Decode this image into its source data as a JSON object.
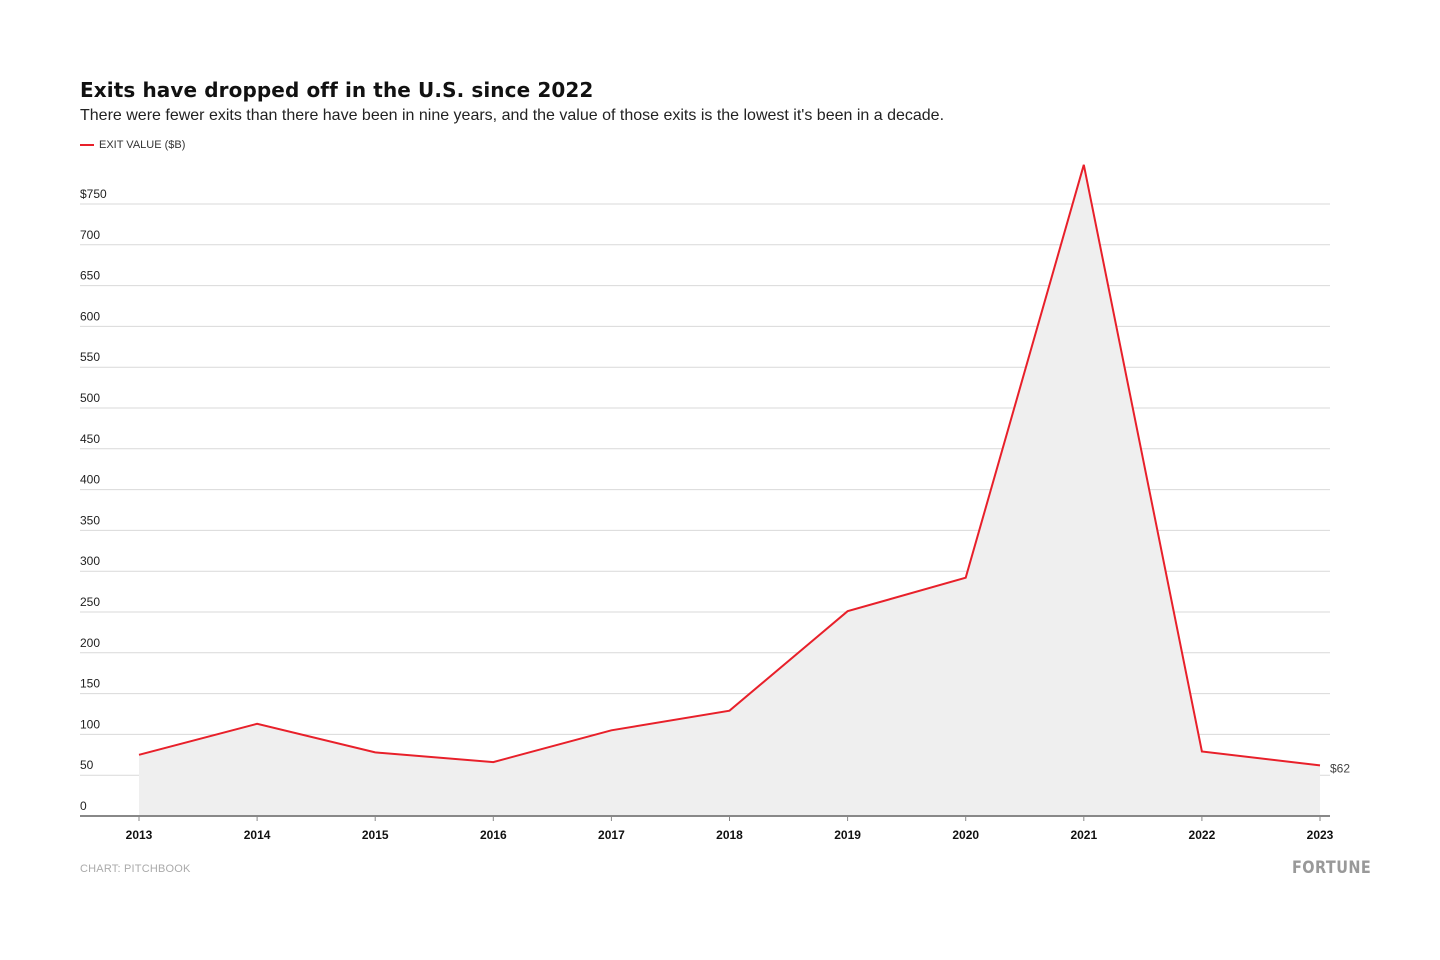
{
  "header": {
    "title": "Exits have dropped off in the U.S. since 2022",
    "subtitle": "There were fewer exits than there have been in nine years, and the value of those exits is the lowest it's been in a decade."
  },
  "footer": {
    "source": "CHART: PITCHBOOK",
    "brand": "FORTUNE"
  },
  "chart_data": {
    "type": "area",
    "title": "Exits have dropped off in the U.S. since 2022",
    "subtitle": "There were fewer exits than there have been in nine years, and the value of those exits is the lowest it's been in a decade.",
    "xlabel": "",
    "ylabel": "",
    "legend": {
      "position": "top-left",
      "entries": [
        {
          "name": "EXIT VALUE ($B)",
          "color": "#e8202a"
        }
      ]
    },
    "categories": [
      "2013",
      "2014",
      "2015",
      "2016",
      "2017",
      "2018",
      "2019",
      "2020",
      "2021",
      "2022",
      "2023"
    ],
    "series": [
      {
        "name": "EXIT VALUE ($B)",
        "color": "#e8202a",
        "fill": "#efefef",
        "values": [
          75,
          113,
          78,
          66,
          105,
          129,
          251,
          292,
          798,
          79,
          62
        ]
      }
    ],
    "ylim": [
      0,
      750
    ],
    "yticks": [
      0,
      50,
      100,
      150,
      200,
      250,
      300,
      350,
      400,
      450,
      500,
      550,
      600,
      650,
      700,
      750
    ],
    "ytick_labels": [
      "0",
      "50",
      "100",
      "150",
      "200",
      "250",
      "300",
      "350",
      "400",
      "450",
      "500",
      "550",
      "600",
      "650",
      "700",
      "$750"
    ],
    "grid": true,
    "annotations": [
      {
        "category": "2023",
        "text": "$62"
      }
    ]
  }
}
